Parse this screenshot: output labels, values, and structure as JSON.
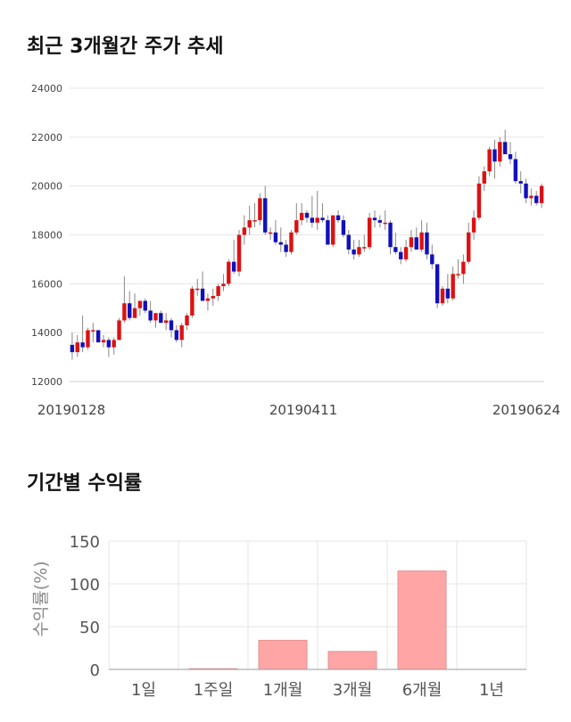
{
  "sections": {
    "price_trend_title": "최근 3개월간 주가 추세",
    "returns_title": "기간별 수익률"
  },
  "chart_data": [
    {
      "type": "candlestick",
      "title": "최근 3개월간 주가 추세",
      "y_ticks": [
        "24000",
        "22000",
        "20000",
        "18000",
        "16000",
        "14000",
        "12000"
      ],
      "ylim": [
        12000,
        24000
      ],
      "x_tick_labels": [
        "20190128",
        "20190411",
        "20190624"
      ],
      "grid": true,
      "colors": {
        "up": "#dd1111",
        "down": "#1111bb",
        "wick": "#888888"
      },
      "ohlc": [
        [
          13500,
          14000,
          12900,
          13200
        ],
        [
          13200,
          13900,
          13000,
          13600
        ],
        [
          13600,
          14700,
          13200,
          13400
        ],
        [
          13400,
          14200,
          13300,
          14100
        ],
        [
          14100,
          14400,
          13600,
          14100
        ],
        [
          14100,
          14100,
          13600,
          13600
        ],
        [
          13600,
          13900,
          13400,
          13700
        ],
        [
          13700,
          13800,
          13000,
          13400
        ],
        [
          13400,
          13800,
          13100,
          13700
        ],
        [
          13700,
          14600,
          13700,
          14500
        ],
        [
          14500,
          16300,
          14400,
          15200
        ],
        [
          15200,
          15700,
          14500,
          14600
        ],
        [
          14600,
          15600,
          14600,
          15000
        ],
        [
          15000,
          15300,
          14700,
          15300
        ],
        [
          15300,
          15400,
          14800,
          14900
        ],
        [
          14900,
          15300,
          14400,
          14500
        ],
        [
          14500,
          14800,
          14200,
          14800
        ],
        [
          14800,
          14900,
          14400,
          14400
        ],
        [
          14400,
          14800,
          14100,
          14500
        ],
        [
          14500,
          14600,
          13800,
          14100
        ],
        [
          14100,
          14300,
          13600,
          13700
        ],
        [
          13700,
          14400,
          13400,
          14300
        ],
        [
          14300,
          14800,
          14100,
          14700
        ],
        [
          14700,
          15900,
          14600,
          15800
        ],
        [
          15800,
          16200,
          15500,
          15800
        ],
        [
          15800,
          16500,
          15300,
          15300
        ],
        [
          15300,
          15600,
          14900,
          15400
        ],
        [
          15400,
          15800,
          15100,
          15500
        ],
        [
          15500,
          16000,
          15300,
          15900
        ],
        [
          15900,
          16400,
          15700,
          16000
        ],
        [
          16000,
          17000,
          15900,
          16900
        ],
        [
          16900,
          17800,
          16400,
          16500
        ],
        [
          16500,
          18200,
          16300,
          18000
        ],
        [
          18000,
          18800,
          17600,
          18300
        ],
        [
          18300,
          19200,
          18000,
          18600
        ],
        [
          18600,
          19300,
          18300,
          18600
        ],
        [
          18600,
          19700,
          18400,
          19500
        ],
        [
          19500,
          20000,
          18000,
          18100
        ],
        [
          18100,
          18300,
          17800,
          18100
        ],
        [
          18100,
          18600,
          17600,
          17700
        ],
        [
          17700,
          18300,
          17300,
          17600
        ],
        [
          17600,
          17800,
          17100,
          17300
        ],
        [
          17300,
          18200,
          17200,
          18100
        ],
        [
          18100,
          19300,
          18000,
          18600
        ],
        [
          18600,
          19300,
          18400,
          18900
        ],
        [
          18900,
          19000,
          18500,
          18700
        ],
        [
          18700,
          19600,
          18300,
          18500
        ],
        [
          18500,
          19800,
          18200,
          18700
        ],
        [
          18700,
          19300,
          18500,
          18600
        ],
        [
          18600,
          18800,
          17600,
          17600
        ],
        [
          17600,
          18800,
          17500,
          18800
        ],
        [
          18800,
          19000,
          18500,
          18600
        ],
        [
          18600,
          18800,
          17900,
          18000
        ],
        [
          18000,
          18200,
          17200,
          17400
        ],
        [
          17400,
          17800,
          17000,
          17200
        ],
        [
          17200,
          17800,
          17100,
          17500
        ],
        [
          17500,
          18000,
          17300,
          17500
        ],
        [
          17500,
          18900,
          17400,
          18700
        ],
        [
          18700,
          19000,
          18300,
          18600
        ],
        [
          18600,
          18800,
          18300,
          18500
        ],
        [
          18500,
          19000,
          18200,
          18500
        ],
        [
          18500,
          18600,
          17200,
          17500
        ],
        [
          17500,
          18100,
          17200,
          17300
        ],
        [
          17300,
          17500,
          16800,
          17000
        ],
        [
          17000,
          17800,
          16900,
          17500
        ],
        [
          17500,
          18200,
          17300,
          17900
        ],
        [
          17900,
          18300,
          17500,
          17400
        ],
        [
          17400,
          18600,
          17300,
          18100
        ],
        [
          18100,
          18500,
          17000,
          17200
        ],
        [
          17200,
          17600,
          16600,
          16800
        ],
        [
          16800,
          16800,
          15000,
          15200
        ],
        [
          15200,
          15900,
          15100,
          15800
        ],
        [
          15800,
          16400,
          15200,
          15400
        ],
        [
          15400,
          16700,
          15300,
          16400
        ],
        [
          16400,
          17000,
          16200,
          16400
        ],
        [
          16400,
          17200,
          16000,
          16900
        ],
        [
          16900,
          18500,
          16800,
          18100
        ],
        [
          18100,
          19000,
          17800,
          18700
        ],
        [
          18700,
          20400,
          18600,
          20100
        ],
        [
          20100,
          20800,
          19800,
          20600
        ],
        [
          20600,
          21600,
          20400,
          21500
        ],
        [
          21500,
          21900,
          20300,
          21000
        ],
        [
          21000,
          22000,
          20800,
          21800
        ],
        [
          21800,
          22300,
          21300,
          21300
        ],
        [
          21300,
          21800,
          20900,
          21100
        ],
        [
          21100,
          21400,
          20100,
          20200
        ],
        [
          20200,
          20600,
          19700,
          20100
        ],
        [
          20100,
          20300,
          19300,
          19500
        ],
        [
          19500,
          19900,
          19200,
          19600
        ],
        [
          19600,
          19800,
          19200,
          19300
        ],
        [
          19300,
          20100,
          19100,
          20000
        ]
      ]
    },
    {
      "type": "bar",
      "title": "기간별 수익률",
      "categories": [
        "1일",
        "1주일",
        "1개월",
        "3개월",
        "6개월",
        "1년"
      ],
      "values": [
        0,
        0.8,
        34,
        21,
        115,
        0
      ],
      "ylabel": "수익률(%)",
      "y_ticks": [
        "150",
        "100",
        "50",
        "0"
      ],
      "ylim": [
        0,
        150
      ],
      "grid": true,
      "colors": {
        "bar": "#ffa5a5",
        "bar_edge": "#e58f8f"
      }
    }
  ]
}
